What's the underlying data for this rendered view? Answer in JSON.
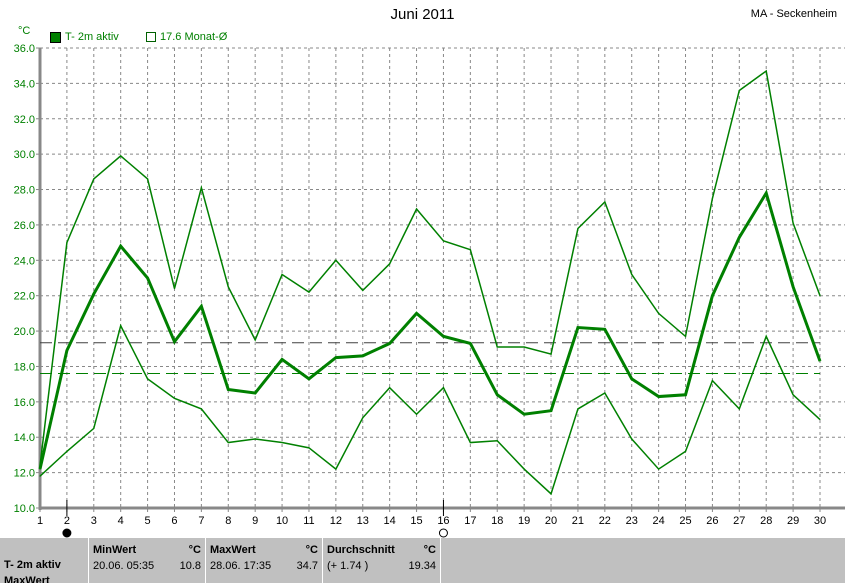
{
  "header": {
    "title": "Juni 2011",
    "station": "MA - Seckenheim",
    "unit": "°C"
  },
  "legend": [
    {
      "label": "T- 2m aktiv",
      "color": "#008000",
      "style": "filled"
    },
    {
      "label": "17.6 Monat-Ø",
      "color": "#008000",
      "style": "dashed"
    }
  ],
  "chart_data": {
    "type": "line",
    "title": "Juni 2011",
    "ylabel": "°C",
    "ylim": [
      10,
      36
    ],
    "xlim": [
      1,
      30
    ],
    "grid": true,
    "x": [
      1,
      2,
      3,
      4,
      5,
      6,
      7,
      8,
      9,
      10,
      11,
      12,
      13,
      14,
      15,
      16,
      17,
      18,
      19,
      20,
      21,
      22,
      23,
      24,
      25,
      26,
      27,
      28,
      29,
      30
    ],
    "yticks": [
      "10.0",
      "12.0",
      "14.0",
      "16.0",
      "18.0",
      "20.0",
      "22.0",
      "24.0",
      "26.0",
      "28.0",
      "30.0",
      "32.0",
      "34.0",
      "36.0"
    ],
    "series": [
      {
        "role": "max",
        "color": "#008000",
        "values": [
          12.4,
          25.0,
          28.6,
          29.9,
          28.6,
          22.4,
          28.1,
          22.5,
          19.5,
          23.2,
          22.2,
          24.0,
          22.3,
          23.8,
          26.9,
          25.1,
          24.6,
          19.1,
          19.1,
          18.7,
          25.8,
          27.3,
          23.2,
          21.0,
          19.7,
          27.5,
          33.6,
          34.7,
          26.1,
          22.0
        ]
      },
      {
        "role": "mean",
        "color": "#008000",
        "values": [
          12.2,
          18.9,
          22.1,
          24.8,
          23.0,
          19.4,
          21.4,
          16.7,
          16.5,
          18.4,
          17.3,
          18.5,
          18.6,
          19.3,
          21.0,
          19.7,
          19.3,
          16.4,
          15.3,
          15.5,
          20.2,
          20.1,
          17.3,
          16.3,
          16.4,
          22.0,
          25.3,
          27.8,
          22.5,
          18.3
        ]
      },
      {
        "role": "min",
        "color": "#008000",
        "values": [
          11.8,
          13.2,
          14.5,
          20.3,
          17.3,
          16.2,
          15.6,
          13.7,
          13.9,
          13.7,
          13.4,
          12.2,
          15.1,
          16.8,
          15.3,
          16.8,
          13.7,
          13.8,
          12.2,
          10.8,
          15.6,
          16.5,
          13.9,
          12.2,
          13.2,
          17.2,
          15.6,
          19.7,
          16.4,
          15.0
        ]
      }
    ],
    "reference_lines": [
      {
        "value": 19.34,
        "color": "#404040",
        "style": "dashed"
      },
      {
        "value": 17.6,
        "color": "#008000",
        "style": "dashed"
      }
    ],
    "moon_phases": [
      {
        "day": 2,
        "phase": "new-moon"
      },
      {
        "day": 16,
        "phase": "full-moon"
      }
    ]
  },
  "stats": {
    "row_label": "T- 2m aktiv",
    "row_label2": "MaxWert",
    "min": {
      "header": "MinWert",
      "unit": "°C",
      "when": "20.06.  05:35",
      "value": "10.8"
    },
    "max": {
      "header": "MaxWert",
      "unit": "°C",
      "when": "28.06.  17:35",
      "value": "34.7"
    },
    "avg": {
      "header": "Durchschnitt",
      "unit": "°C",
      "diff": "(+ 1.74 )",
      "value": "19.34"
    }
  }
}
